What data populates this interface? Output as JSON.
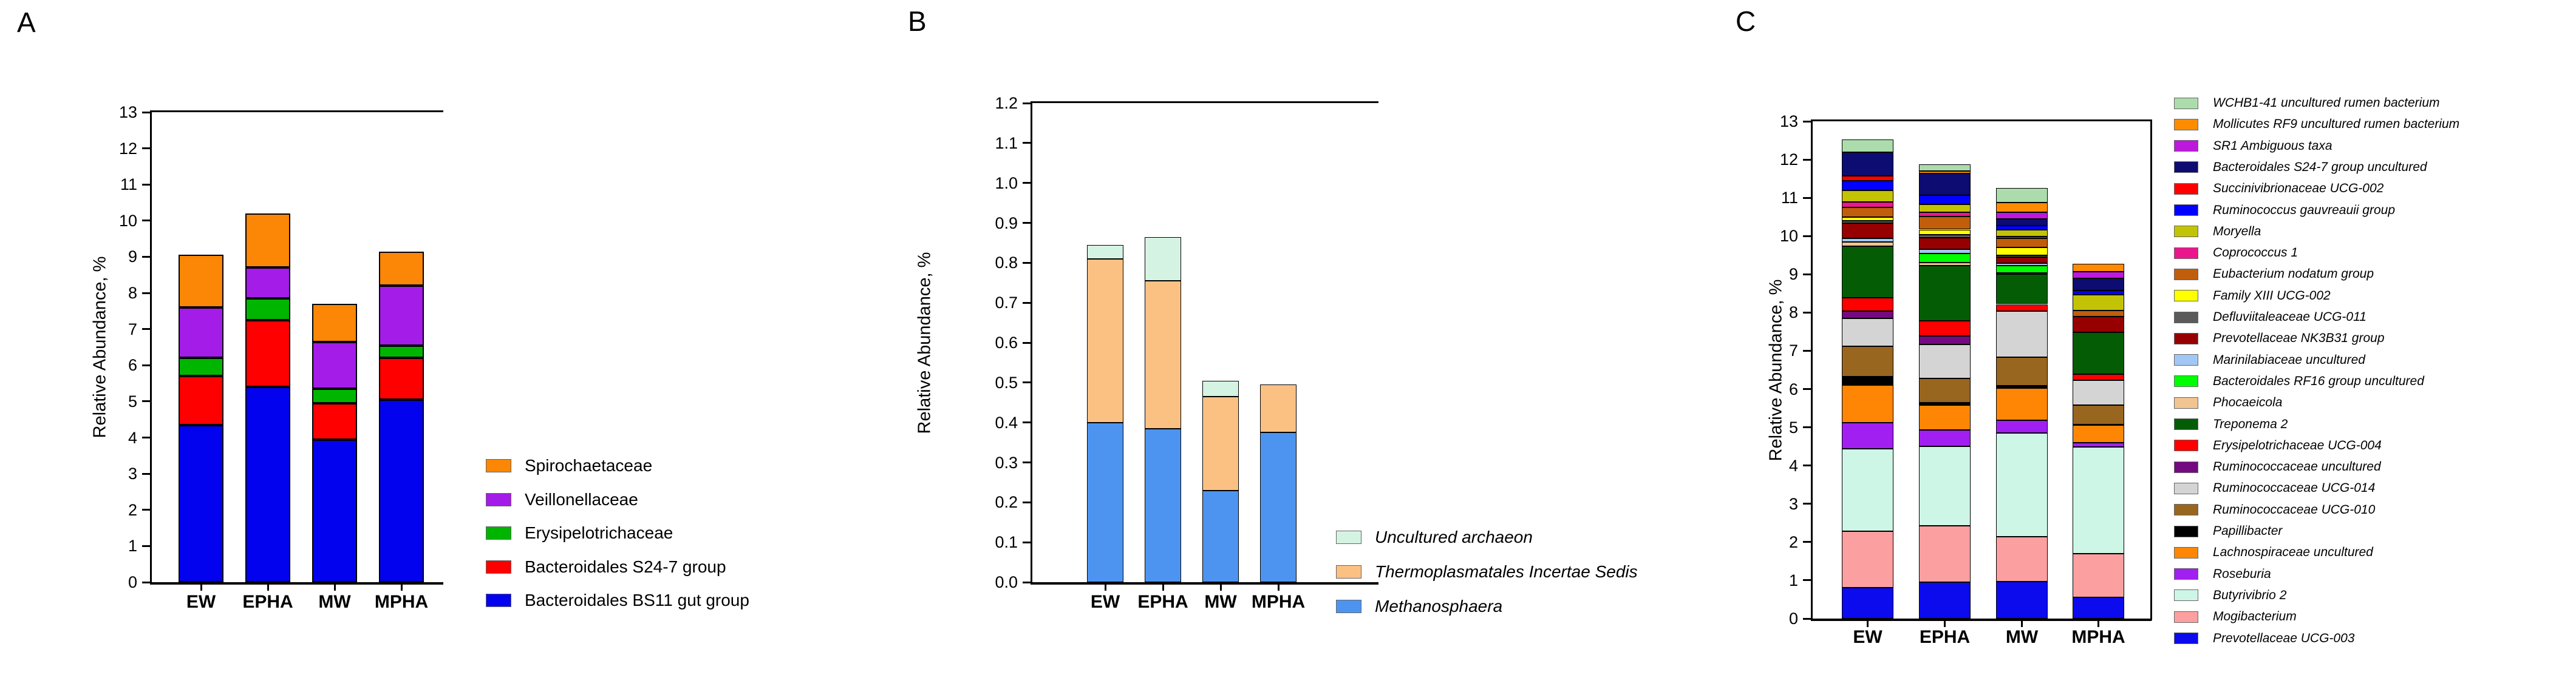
{
  "figure": {
    "background_color": "#ffffff",
    "axis_color": "#000000"
  },
  "chart_data": [
    {
      "type": "bar",
      "stacked": true,
      "panel_label": "A",
      "title": "",
      "ylabel": "Relative Abundance, %",
      "xlabel": "",
      "categories": [
        "EW",
        "EPHA",
        "MW",
        "MPHA"
      ],
      "ylim": [
        0,
        13
      ],
      "ytick_step": 1,
      "ytick_decimals": 0,
      "grid": false,
      "legend_position": "right",
      "legend_italic": false,
      "series_stack_order": "bottom-to-top",
      "series": [
        {
          "name": "Bacteroidales BS11 gut group",
          "color": "#0202EE",
          "values": [
            4.35,
            5.4,
            3.95,
            5.05
          ]
        },
        {
          "name": "Bacteroidales S24-7 group",
          "color": "#FE0000",
          "values": [
            1.35,
            1.85,
            1.0,
            1.15
          ]
        },
        {
          "name": "Erysipelotrichaceae",
          "color": "#00B500",
          "values": [
            0.5,
            0.6,
            0.4,
            0.35
          ]
        },
        {
          "name": "Veillonellaceae",
          "color": "#A31CE8",
          "values": [
            1.4,
            0.85,
            1.3,
            1.65
          ]
        },
        {
          "name": "Spirochaetaceae",
          "color": "#FC8605",
          "values": [
            1.45,
            1.5,
            1.05,
            0.95
          ]
        }
      ],
      "totals": [
        9.05,
        10.2,
        7.7,
        9.15
      ]
    },
    {
      "type": "bar",
      "stacked": true,
      "panel_label": "B",
      "title": "",
      "ylabel": "Relative Abundance, %",
      "xlabel": "",
      "categories": [
        "EW",
        "EPHA",
        "MW",
        "MPHA"
      ],
      "ylim": [
        0,
        1.2
      ],
      "ytick_step": 0.1,
      "ytick_decimals": 1,
      "grid": false,
      "legend_position": "right",
      "legend_italic": true,
      "series_stack_order": "bottom-to-top",
      "series": [
        {
          "name": "Methanosphaera",
          "color": "#4D94F0",
          "values": [
            0.4,
            0.385,
            0.23,
            0.375
          ]
        },
        {
          "name": "Thermoplasmatales Incertae Sedis",
          "color": "#FBC183",
          "values": [
            0.41,
            0.37,
            0.235,
            0.12
          ]
        },
        {
          "name": "Uncultured archaeon",
          "color": "#D5F3E3",
          "values": [
            0.035,
            0.11,
            0.04,
            0.0
          ]
        }
      ],
      "totals": [
        0.845,
        0.865,
        0.505,
        0.495
      ]
    },
    {
      "type": "bar",
      "stacked": true,
      "panel_label": "C",
      "title": "",
      "ylabel": "Relative Abundance, %",
      "xlabel": "",
      "categories": [
        "EW",
        "EPHA",
        "MW",
        "MPHA"
      ],
      "ylim": [
        0,
        13
      ],
      "ytick_step": 1,
      "ytick_decimals": 0,
      "grid": false,
      "legend_position": "right",
      "legend_italic": true,
      "series_stack_order": "bottom-to-top",
      "series": [
        {
          "name": "Prevotellaceae UCG-003",
          "color": "#0B0BEE",
          "values": [
            0.81,
            0.95,
            0.97,
            0.55
          ]
        },
        {
          "name": "Mogibacterium",
          "color": "#FC9FA0",
          "values": [
            1.48,
            1.48,
            1.17,
            1.14
          ]
        },
        {
          "name": "Butyrivibrio 2",
          "color": "#CDF6E6",
          "values": [
            2.15,
            2.07,
            2.71,
            2.8
          ]
        },
        {
          "name": "Roseburia",
          "color": "#A21FF2",
          "values": [
            0.68,
            0.43,
            0.33,
            0.1
          ]
        },
        {
          "name": "Lachnospiraceae uncultured",
          "color": "#FF8604",
          "values": [
            0.98,
            0.65,
            0.85,
            0.46
          ]
        },
        {
          "name": "Papillibacter",
          "color": "#000000",
          "values": [
            0.23,
            0.06,
            0.05,
            0.03
          ]
        },
        {
          "name": "Ruminococcaceae UCG-010",
          "color": "#99661F",
          "values": [
            0.79,
            0.64,
            0.76,
            0.5
          ]
        },
        {
          "name": "Ruminococcaceae UCG-014",
          "color": "#D4D4D4",
          "values": [
            0.73,
            0.88,
            1.2,
            0.65
          ]
        },
        {
          "name": "Ruminococcaceae uncultured",
          "color": "#740A80",
          "values": [
            0.19,
            0.22,
            0.0,
            0.0
          ]
        },
        {
          "name": "Erysipelotrichaceae UCG-004",
          "color": "#FE0000",
          "values": [
            0.34,
            0.4,
            0.18,
            0.16
          ]
        },
        {
          "name": "Treponema 2",
          "color": "#045D04",
          "values": [
            1.35,
            1.45,
            0.78,
            1.1
          ]
        },
        {
          "name": "Phocaeicola",
          "color": "#F1C491",
          "values": [
            0.12,
            0.08,
            0.03,
            0.0
          ]
        },
        {
          "name": "Bacteroidales RF16 group uncultured",
          "color": "#00FE00",
          "values": [
            0.0,
            0.23,
            0.19,
            0.0
          ]
        },
        {
          "name": "Marinilabiaceae uncultured",
          "color": "#A3C7F4",
          "values": [
            0.09,
            0.11,
            0.07,
            0.0
          ]
        },
        {
          "name": "Prevotellaceae NK3B31 group",
          "color": "#960000",
          "values": [
            0.39,
            0.31,
            0.16,
            0.4
          ]
        },
        {
          "name": "Defluviitaleaceae UCG-011",
          "color": "#5A5A5A",
          "values": [
            0.07,
            0.08,
            0.04,
            0.0
          ]
        },
        {
          "name": "Family XIII UCG-002",
          "color": "#FFFF00",
          "values": [
            0.09,
            0.13,
            0.21,
            0.0
          ]
        },
        {
          "name": "Eubacterium nodatum group",
          "color": "#C05E0C",
          "values": [
            0.26,
            0.34,
            0.24,
            0.16
          ]
        },
        {
          "name": "Coprococcus 1",
          "color": "#EC168C",
          "values": [
            0.14,
            0.11,
            0.04,
            0.0
          ]
        },
        {
          "name": "Moryella",
          "color": "#C3C305",
          "values": [
            0.31,
            0.21,
            0.18,
            0.42
          ]
        },
        {
          "name": "Ruminococcus gauvreauii group",
          "color": "#0101FE",
          "values": [
            0.24,
            0.24,
            0.12,
            0.11
          ]
        },
        {
          "name": "Succinivibrionaceae UCG-002",
          "color": "#FE0000",
          "values": [
            0.13,
            0.0,
            0.0,
            0.0
          ]
        },
        {
          "name": "Bacteroidales S24-7 group uncultured",
          "color": "#0C0C72",
          "values": [
            0.62,
            0.57,
            0.16,
            0.31
          ]
        },
        {
          "name": "SR1 Ambiguous taxa",
          "color": "#BE18DE",
          "values": [
            0.0,
            0.0,
            0.18,
            0.18
          ]
        },
        {
          "name": "Mollicutes RF9 uncultured rumen bacterium",
          "color": "#FF8C00",
          "values": [
            0.0,
            0.06,
            0.26,
            0.21
          ]
        },
        {
          "name": "WCHB1-41 uncultured rumen bacterium",
          "color": "#ACDCAC",
          "values": [
            0.33,
            0.18,
            0.38,
            0.0
          ]
        }
      ],
      "totals": [
        12.53,
        11.88,
        11.26,
        9.28
      ]
    }
  ]
}
